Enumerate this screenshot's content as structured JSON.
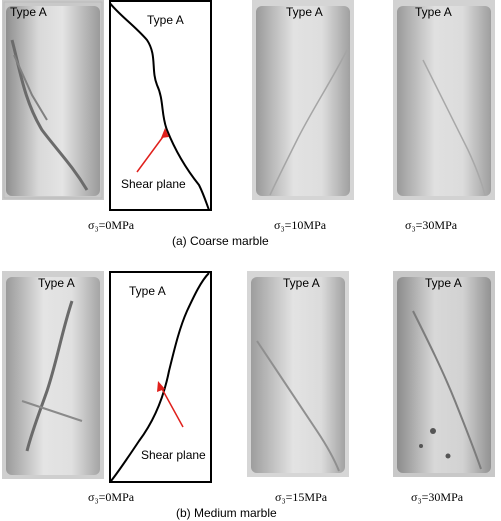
{
  "panels": [
    {
      "caption": "(a) Coarse marble",
      "specimens": [
        {
          "type_label": "Type A",
          "sigma_label": "σ₃=0MPa"
        },
        {
          "type_label": "Type A",
          "sigma_label": "σ₃=10MPa"
        },
        {
          "type_label": "Type A",
          "sigma_label": "σ₃=30MPa"
        }
      ],
      "sketch": {
        "type_label": "Type A",
        "annotation": "Shear plane"
      }
    },
    {
      "caption": "(b) Medium marble",
      "specimens": [
        {
          "type_label": "Type A",
          "sigma_label": "σ₃=0MPa"
        },
        {
          "type_label": "Type A",
          "sigma_label": "σ₃=15MPa"
        },
        {
          "type_label": "Type A",
          "sigma_label": "σ₃=30MPa"
        }
      ],
      "sketch": {
        "type_label": "Type A",
        "annotation": "Shear plane"
      }
    }
  ],
  "colors": {
    "annotation_arrow": "#e0201c",
    "sketch_line": "#000000"
  }
}
